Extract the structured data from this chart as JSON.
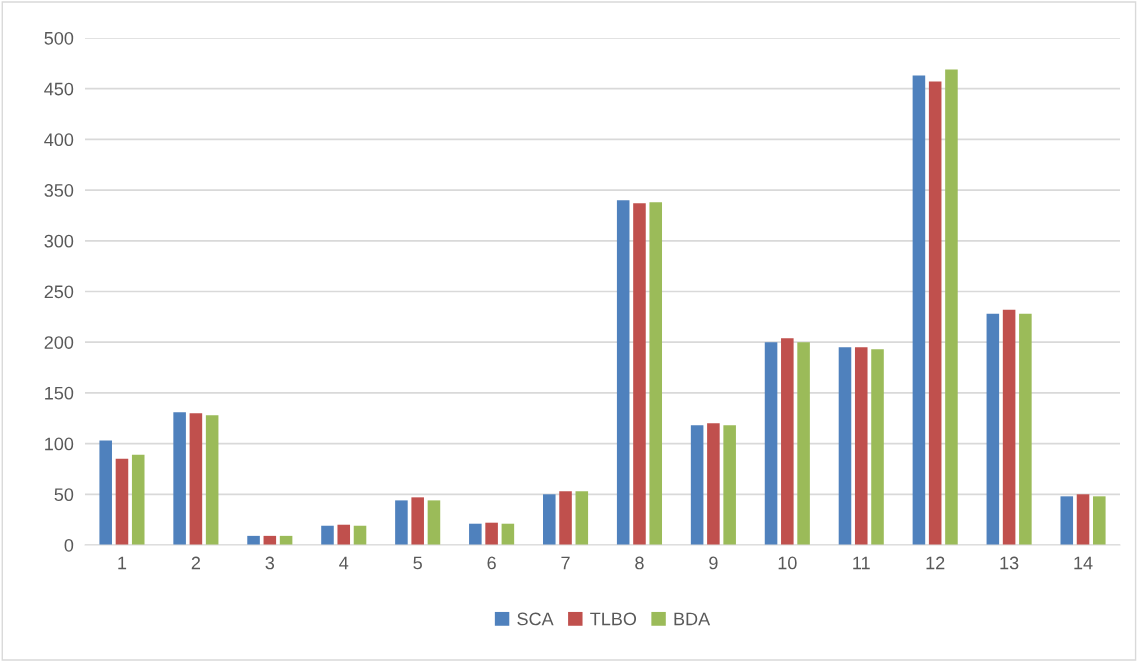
{
  "chart_data": {
    "type": "bar",
    "categories": [
      "1",
      "2",
      "3",
      "4",
      "5",
      "6",
      "7",
      "8",
      "9",
      "10",
      "11",
      "12",
      "13",
      "14"
    ],
    "series": [
      {
        "name": "SCA",
        "color": "#4f81bd",
        "values": [
          103,
          131,
          9,
          19,
          44,
          21,
          50,
          340,
          118,
          200,
          195,
          463,
          228,
          48
        ]
      },
      {
        "name": "TLBO",
        "color": "#c0504d",
        "values": [
          85,
          130,
          9,
          20,
          47,
          22,
          53,
          337,
          120,
          204,
          195,
          457,
          232,
          50
        ]
      },
      {
        "name": "BDA",
        "color": "#9bbb59",
        "values": [
          89,
          128,
          9,
          19,
          44,
          21,
          53,
          338,
          118,
          200,
          193,
          469,
          228,
          48
        ]
      }
    ],
    "ylim": [
      0,
      500
    ],
    "yticks": [
      0,
      50,
      100,
      150,
      200,
      250,
      300,
      350,
      400,
      450,
      500
    ],
    "grid": "y",
    "legend": "bottom"
  }
}
